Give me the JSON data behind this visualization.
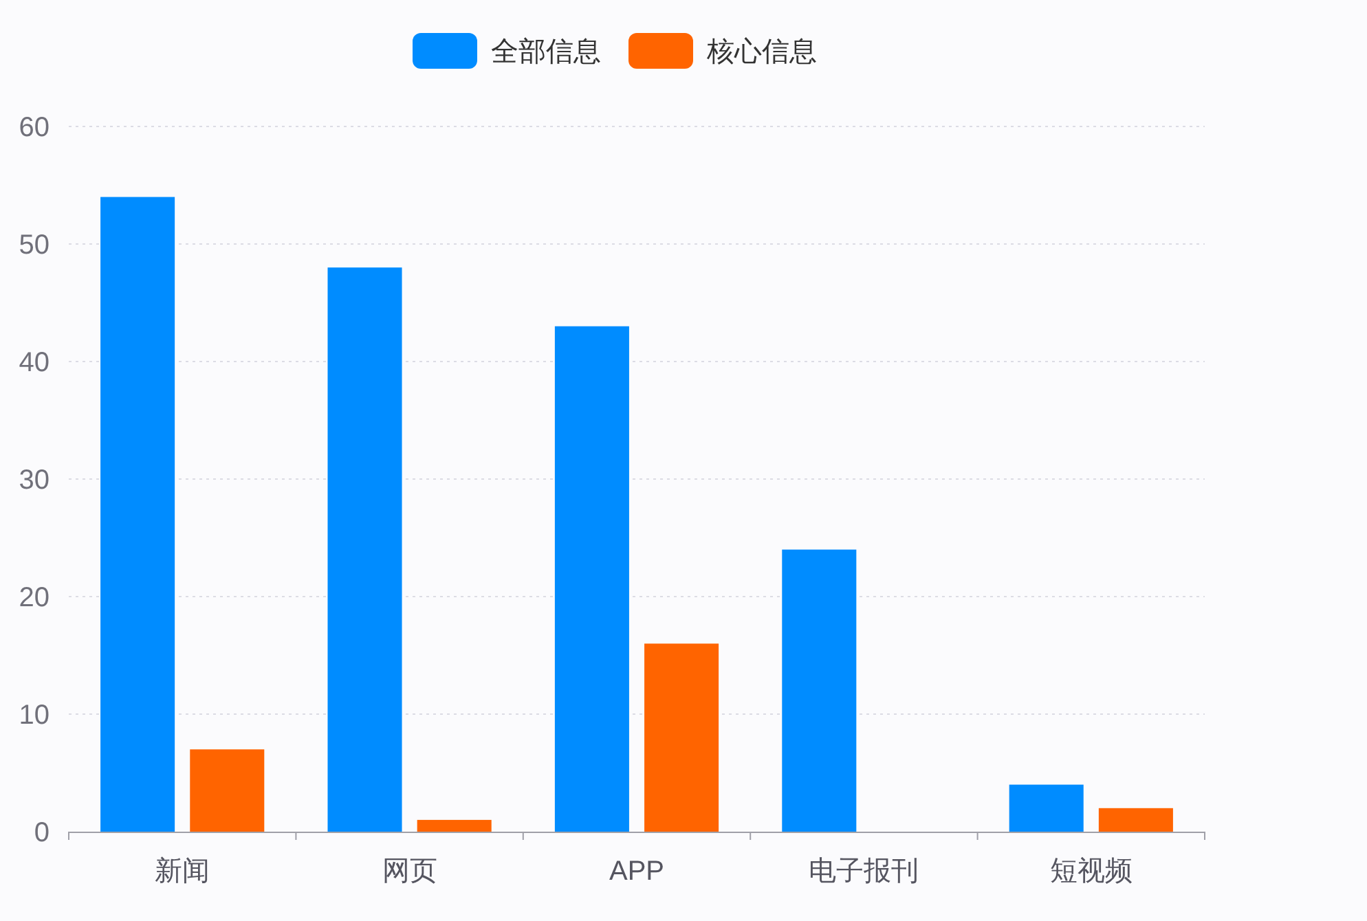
{
  "chart_data": {
    "type": "bar",
    "categories": [
      "新闻",
      "网页",
      "APP",
      "电子报刊",
      "短视频"
    ],
    "series": [
      {
        "name": "全部信息",
        "color": "#008cff",
        "values": [
          54,
          48,
          43,
          24,
          4
        ]
      },
      {
        "name": "核心信息",
        "color": "#ff6400",
        "values": [
          7,
          1,
          16,
          0,
          2
        ]
      }
    ],
    "ylim": [
      0,
      60
    ],
    "yticks": [
      0,
      10,
      20,
      30,
      40,
      50,
      60
    ],
    "grid": "y",
    "legend": "top"
  }
}
